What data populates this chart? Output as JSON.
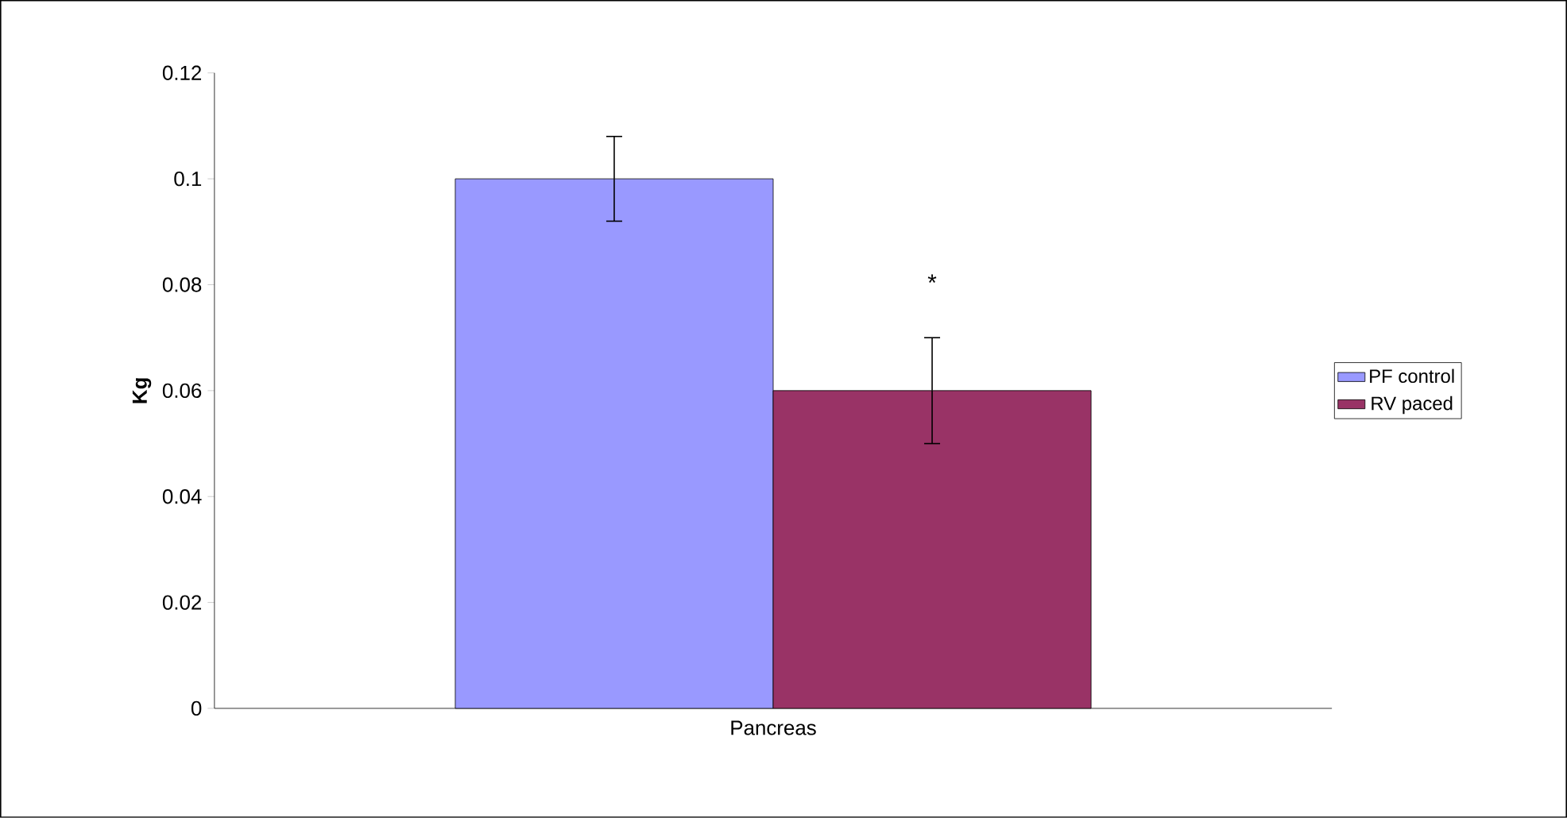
{
  "chart_data": {
    "type": "bar",
    "ylabel": "Kg",
    "categories": [
      "Pancreas"
    ],
    "series": [
      {
        "name": "PF control",
        "color": "#9999ff",
        "values": [
          0.1
        ],
        "errors": [
          0.008
        ]
      },
      {
        "name": "RV paced",
        "color": "#993366",
        "values": [
          0.06
        ],
        "errors": [
          0.01
        ]
      }
    ],
    "ylim": [
      0,
      0.12
    ],
    "yticks": [
      0,
      0.02,
      0.04,
      0.06,
      0.08,
      0.1,
      0.12
    ],
    "legend": "right",
    "annotations": [
      "*"
    ]
  }
}
